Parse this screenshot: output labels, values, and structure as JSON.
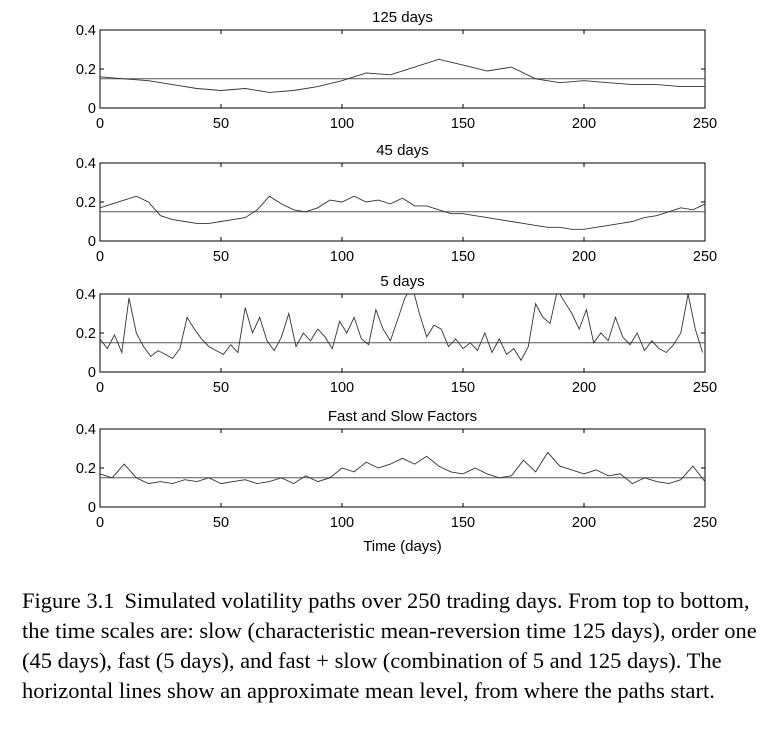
{
  "chart_data": [
    {
      "type": "line",
      "title": "125 days",
      "xlabel": "",
      "ylabel": "",
      "xlim": [
        0,
        250
      ],
      "ylim": [
        0,
        0.4
      ],
      "x_ticks": [
        "0",
        "50",
        "100",
        "150",
        "200",
        "250"
      ],
      "y_ticks": [
        "0",
        "0.2",
        "0.4"
      ],
      "mean_level": 0.15,
      "grid": false,
      "series": [
        {
          "x": [
            0,
            10,
            20,
            30,
            40,
            50,
            60,
            70,
            80,
            90,
            100,
            110,
            120,
            130,
            140,
            150,
            160,
            170,
            180,
            190,
            200,
            210,
            220,
            230,
            240,
            250
          ],
          "values": [
            0.16,
            0.15,
            0.14,
            0.12,
            0.1,
            0.09,
            0.1,
            0.08,
            0.09,
            0.11,
            0.14,
            0.18,
            0.17,
            0.21,
            0.25,
            0.22,
            0.19,
            0.21,
            0.15,
            0.13,
            0.14,
            0.13,
            0.12,
            0.12,
            0.11,
            0.11
          ]
        }
      ]
    },
    {
      "type": "line",
      "title": "45 days",
      "xlabel": "",
      "ylabel": "",
      "xlim": [
        0,
        250
      ],
      "ylim": [
        0,
        0.4
      ],
      "x_ticks": [
        "0",
        "50",
        "100",
        "150",
        "200",
        "250"
      ],
      "y_ticks": [
        "0",
        "0.2",
        "0.4"
      ],
      "mean_level": 0.15,
      "grid": false,
      "series": [
        {
          "x": [
            0,
            5,
            10,
            15,
            20,
            25,
            30,
            35,
            40,
            45,
            50,
            55,
            60,
            65,
            70,
            75,
            80,
            85,
            90,
            95,
            100,
            105,
            110,
            115,
            120,
            125,
            130,
            135,
            140,
            145,
            150,
            155,
            160,
            165,
            170,
            175,
            180,
            185,
            190,
            195,
            200,
            205,
            210,
            215,
            220,
            225,
            230,
            235,
            240,
            245,
            250
          ],
          "values": [
            0.17,
            0.19,
            0.21,
            0.23,
            0.2,
            0.13,
            0.11,
            0.1,
            0.09,
            0.09,
            0.1,
            0.11,
            0.12,
            0.16,
            0.23,
            0.19,
            0.16,
            0.15,
            0.17,
            0.21,
            0.2,
            0.23,
            0.2,
            0.21,
            0.19,
            0.22,
            0.18,
            0.18,
            0.16,
            0.14,
            0.14,
            0.13,
            0.12,
            0.11,
            0.1,
            0.09,
            0.08,
            0.07,
            0.07,
            0.06,
            0.06,
            0.07,
            0.08,
            0.09,
            0.1,
            0.12,
            0.13,
            0.15,
            0.17,
            0.16,
            0.19
          ]
        }
      ]
    },
    {
      "type": "line",
      "title": "5 days",
      "xlabel": "",
      "ylabel": "",
      "xlim": [
        0,
        250
      ],
      "ylim": [
        0,
        0.4
      ],
      "x_ticks": [
        "0",
        "50",
        "100",
        "150",
        "200",
        "250"
      ],
      "y_ticks": [
        "0",
        "0.2",
        "0.4"
      ],
      "mean_level": 0.15,
      "grid": false,
      "series": [
        {
          "x": [
            0,
            3,
            6,
            9,
            12,
            15,
            18,
            21,
            24,
            27,
            30,
            33,
            36,
            39,
            42,
            45,
            48,
            51,
            54,
            57,
            60,
            63,
            66,
            69,
            72,
            75,
            78,
            81,
            84,
            87,
            90,
            93,
            96,
            99,
            102,
            105,
            108,
            111,
            114,
            117,
            120,
            123,
            126,
            129,
            132,
            135,
            138,
            141,
            144,
            147,
            150,
            153,
            156,
            159,
            162,
            165,
            168,
            171,
            174,
            177,
            180,
            183,
            186,
            189,
            192,
            195,
            198,
            201,
            204,
            207,
            210,
            213,
            216,
            219,
            222,
            225,
            228,
            231,
            234,
            237,
            240,
            243,
            246,
            249
          ],
          "values": [
            0.17,
            0.12,
            0.19,
            0.1,
            0.38,
            0.2,
            0.13,
            0.08,
            0.11,
            0.09,
            0.07,
            0.12,
            0.28,
            0.22,
            0.17,
            0.13,
            0.11,
            0.09,
            0.14,
            0.1,
            0.33,
            0.2,
            0.28,
            0.16,
            0.11,
            0.18,
            0.3,
            0.13,
            0.2,
            0.16,
            0.22,
            0.18,
            0.12,
            0.26,
            0.2,
            0.28,
            0.17,
            0.14,
            0.32,
            0.22,
            0.16,
            0.27,
            0.38,
            0.44,
            0.3,
            0.18,
            0.24,
            0.22,
            0.13,
            0.17,
            0.12,
            0.15,
            0.11,
            0.2,
            0.1,
            0.17,
            0.09,
            0.12,
            0.06,
            0.13,
            0.35,
            0.28,
            0.25,
            0.42,
            0.36,
            0.3,
            0.22,
            0.32,
            0.15,
            0.2,
            0.16,
            0.28,
            0.18,
            0.14,
            0.2,
            0.11,
            0.16,
            0.12,
            0.1,
            0.14,
            0.2,
            0.4,
            0.22,
            0.1
          ]
        }
      ]
    },
    {
      "type": "line",
      "title": "Fast and Slow Factors",
      "xlabel": "Time (days)",
      "ylabel": "",
      "xlim": [
        0,
        250
      ],
      "ylim": [
        0,
        0.4
      ],
      "x_ticks": [
        "0",
        "50",
        "100",
        "150",
        "200",
        "250"
      ],
      "y_ticks": [
        "0",
        "0.2",
        "0.4"
      ],
      "mean_level": 0.15,
      "grid": false,
      "series": [
        {
          "x": [
            0,
            5,
            10,
            15,
            20,
            25,
            30,
            35,
            40,
            45,
            50,
            55,
            60,
            65,
            70,
            75,
            80,
            85,
            90,
            95,
            100,
            105,
            110,
            115,
            120,
            125,
            130,
            135,
            140,
            145,
            150,
            155,
            160,
            165,
            170,
            175,
            180,
            185,
            190,
            195,
            200,
            205,
            210,
            215,
            220,
            225,
            230,
            235,
            240,
            245,
            250
          ],
          "values": [
            0.17,
            0.15,
            0.22,
            0.15,
            0.12,
            0.13,
            0.12,
            0.14,
            0.13,
            0.15,
            0.12,
            0.13,
            0.14,
            0.12,
            0.13,
            0.15,
            0.12,
            0.16,
            0.13,
            0.15,
            0.2,
            0.18,
            0.23,
            0.2,
            0.22,
            0.25,
            0.22,
            0.26,
            0.21,
            0.18,
            0.17,
            0.2,
            0.17,
            0.15,
            0.16,
            0.24,
            0.18,
            0.28,
            0.21,
            0.19,
            0.17,
            0.19,
            0.16,
            0.17,
            0.12,
            0.15,
            0.13,
            0.12,
            0.14,
            0.21,
            0.13
          ]
        }
      ]
    }
  ],
  "caption": {
    "label": "Figure 3.1",
    "text": "Simulated volatility paths over 250 trading days. From top to bottom, the time scales are: slow (characteristic mean-reversion time 125 days), order one (45 days), fast (5 days), and fast + slow (combination of 5 and 125 days). The horizontal lines show an approximate mean level, from where the paths start."
  }
}
